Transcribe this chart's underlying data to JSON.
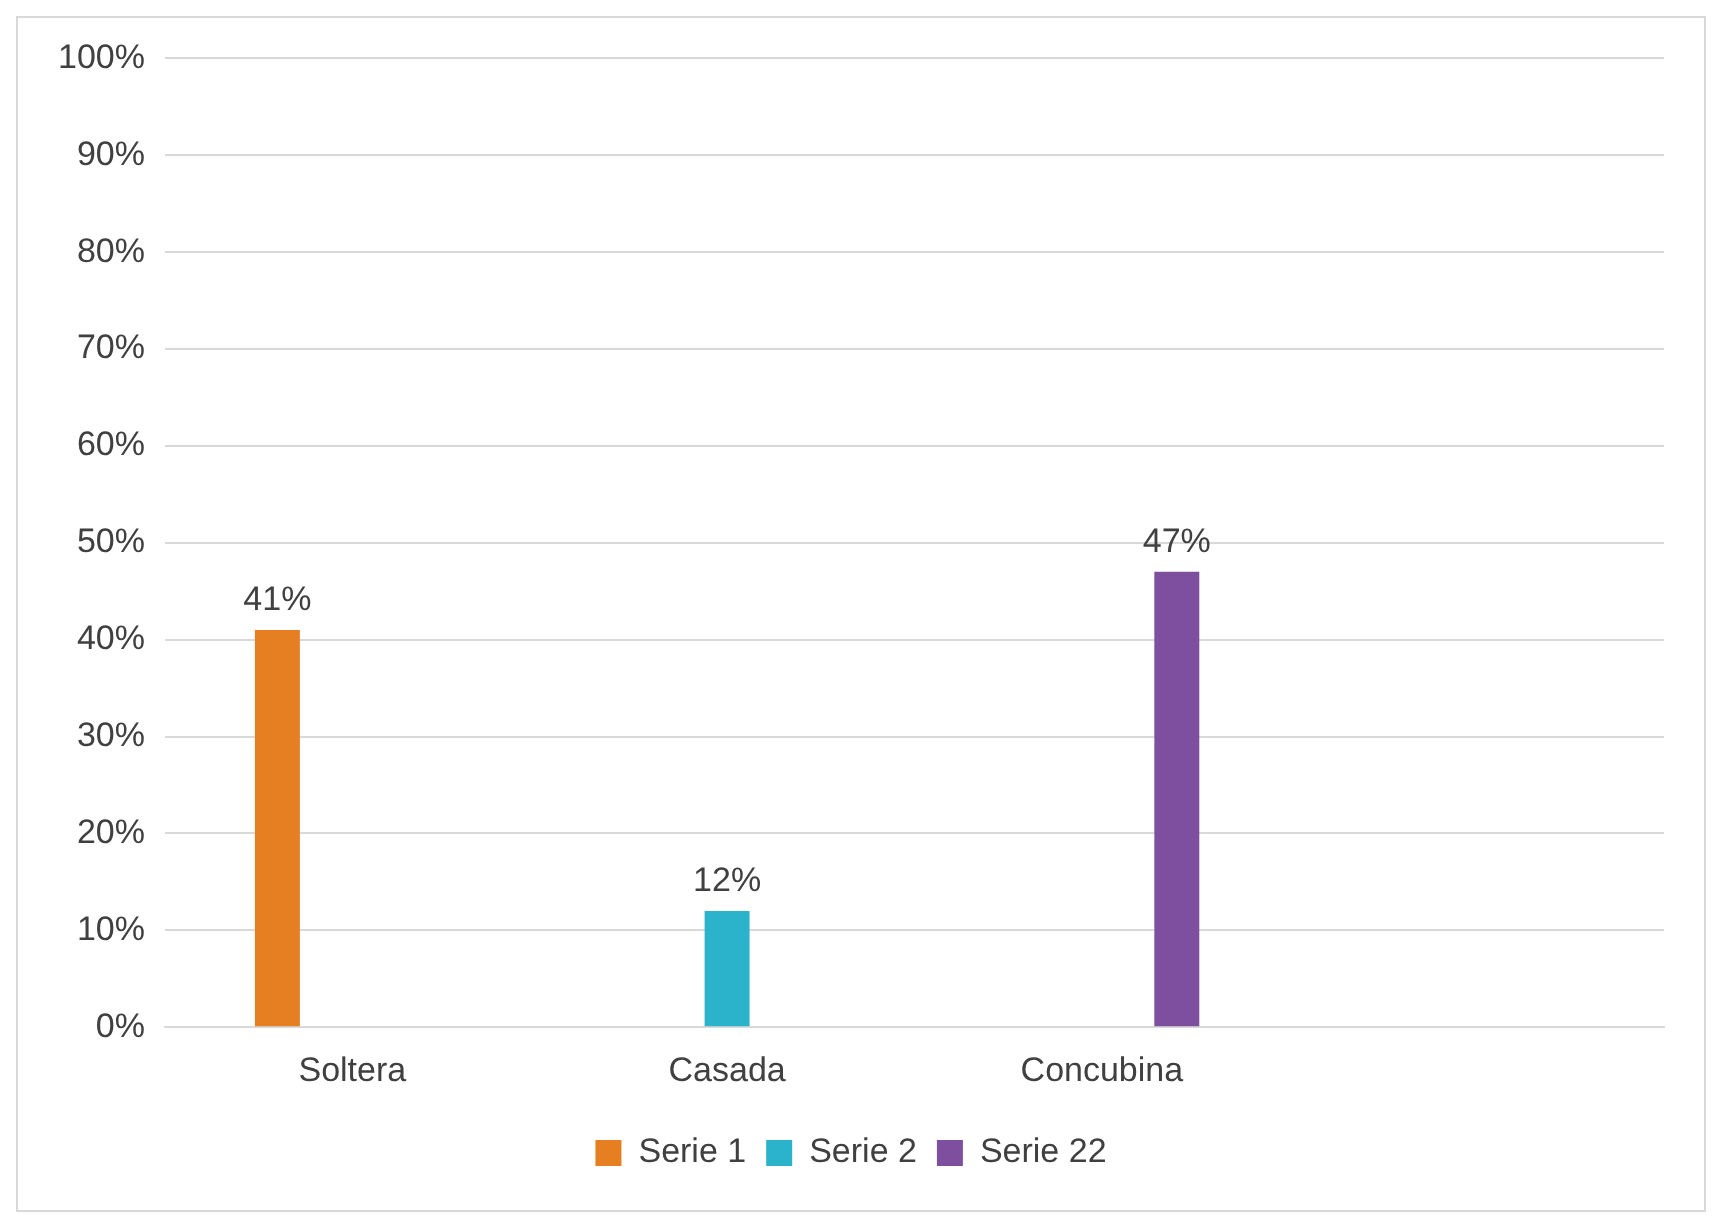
{
  "chart_data": {
    "type": "bar",
    "categories": [
      "Soltera",
      "Casada",
      "Concubina",
      null
    ],
    "series": [
      {
        "name": "Serie 1",
        "color": "#e67e22",
        "values": [
          41,
          null,
          null,
          null
        ],
        "value_labels": [
          "41%",
          null,
          null,
          null
        ]
      },
      {
        "name": "Serie 2",
        "color": "#2bb3cc",
        "values": [
          null,
          12,
          null,
          null
        ],
        "value_labels": [
          null,
          "12%",
          null,
          null
        ]
      },
      {
        "name": "Serie 22",
        "color": "#7d4f9e",
        "values": [
          null,
          null,
          47,
          null
        ],
        "value_labels": [
          null,
          null,
          "47%",
          null
        ]
      }
    ],
    "ylim": [
      0,
      100
    ],
    "yticks": [
      {
        "value": 0,
        "label": "0%"
      },
      {
        "value": 10,
        "label": "10%"
      },
      {
        "value": 20,
        "label": "20%"
      },
      {
        "value": 30,
        "label": "30%"
      },
      {
        "value": 40,
        "label": "40%"
      },
      {
        "value": 50,
        "label": "50%"
      },
      {
        "value": 60,
        "label": "60%"
      },
      {
        "value": 70,
        "label": "70%"
      },
      {
        "value": 80,
        "label": "80%"
      },
      {
        "value": 90,
        "label": "90%"
      },
      {
        "value": 100,
        "label": "100%"
      }
    ],
    "grid": "y",
    "legend": "bottom"
  }
}
